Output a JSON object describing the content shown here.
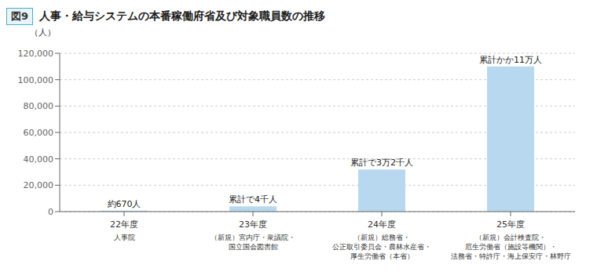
{
  "chart_data": {
    "type": "bar",
    "title_box": "図9",
    "title": "人事・給与システムの本番稼働府省及び対象職員数の推移",
    "ylabel": "（人）",
    "categories": [
      "22年度",
      "23年度",
      "24年度",
      "25年度"
    ],
    "category_details": [
      "人事院",
      "（新規）宮内庁・衆議院・\n国立国会図書館",
      "（新規）総務省・\n公正取引委員会・農林水産省・\n厚生労働省（本省）",
      "（新規）会計検査院・\n厄生労働省（施設等機関）・\n法務省・特許庁・海上保安庁・林野庁"
    ],
    "values": [
      670,
      4000,
      32000,
      110000
    ],
    "value_labels": [
      "約670人",
      "累計で4千人",
      "累計で3万2千人",
      "累計かか11万人"
    ],
    "data_labels": true,
    "color": "#B8D8F0",
    "ylim": [
      0,
      120000
    ],
    "yticks": [
      0,
      {
        "value": 20000,
        "label": "20,000"
      },
      {
        "value": 40000,
        "label": "40,000"
      },
      {
        "value": 60000,
        "label": "60,000"
      },
      {
        "value": 80000,
        "label": "80,000"
      },
      {
        "value": 100000,
        "label": "100,000"
      },
      {
        "value": 120000,
        "label": "120,000"
      }
    ],
    "grid": true
  }
}
